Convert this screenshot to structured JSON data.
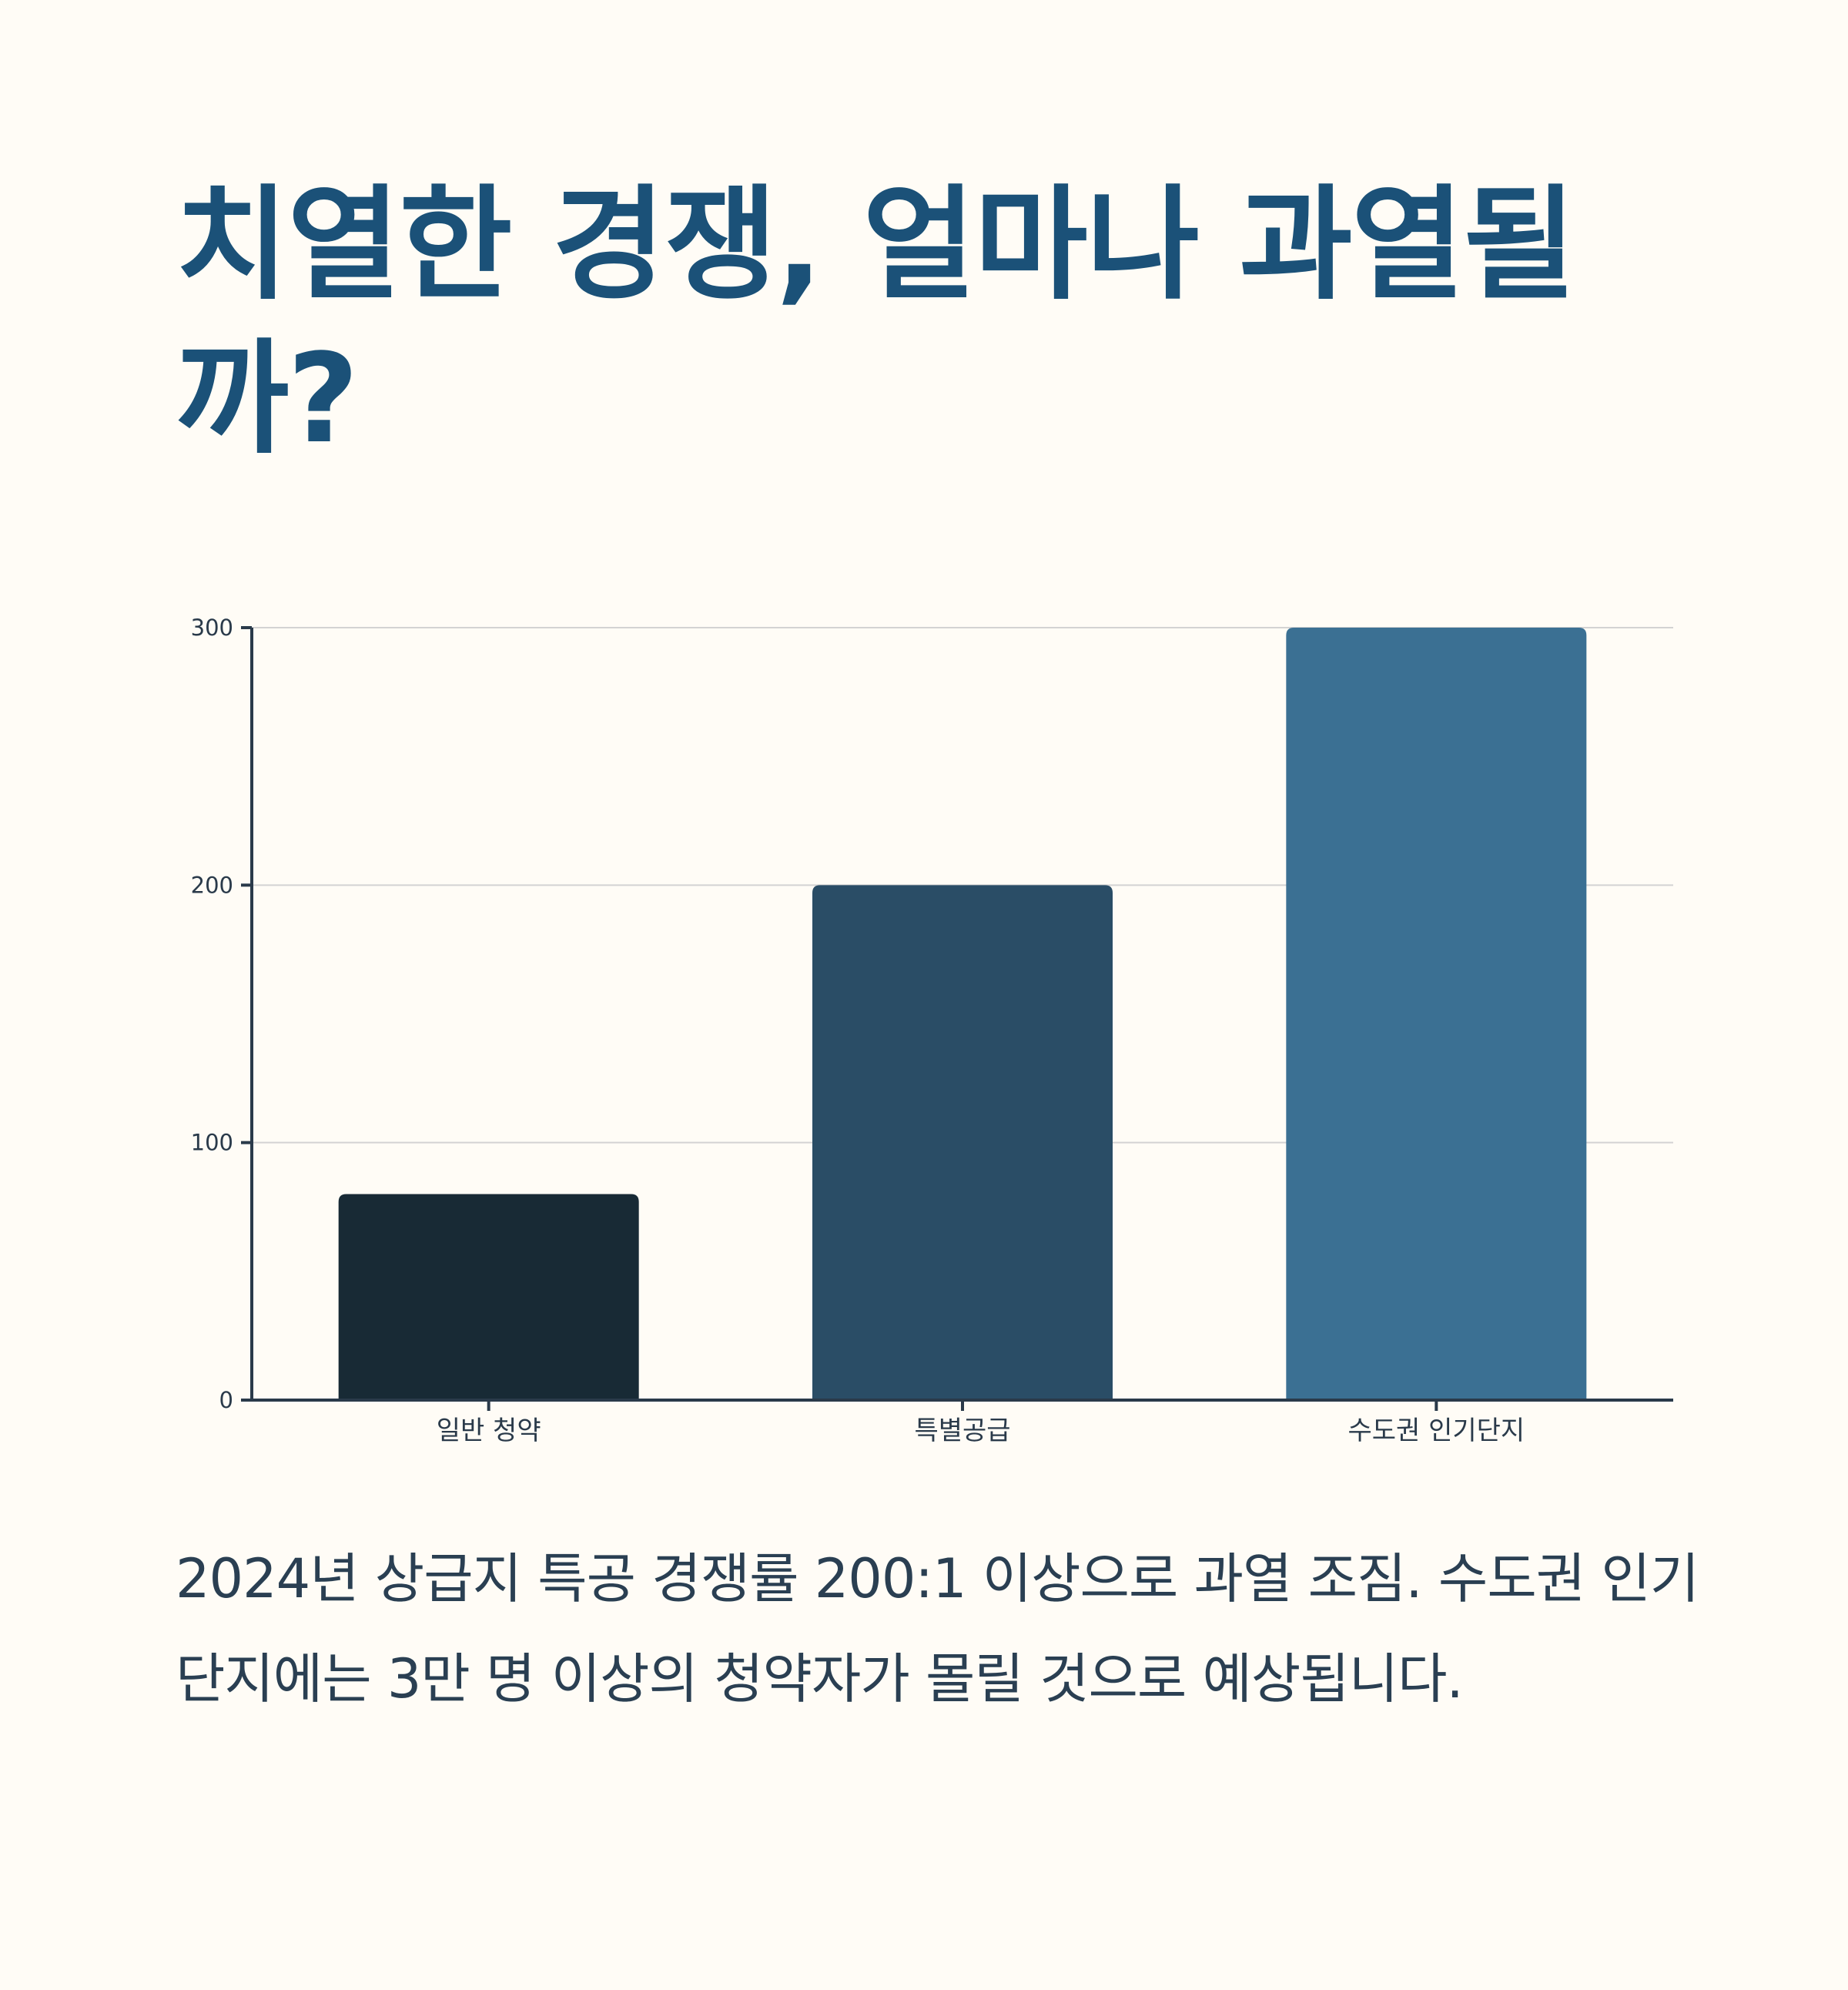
{
  "title": "치열한 경쟁, 얼마나 과열될까?",
  "description": "2024년 상급지 특공 경쟁률 200:1 이상으로 과열 조짐. 수도권 인기단지에는 3만 명 이상의 청약자가 몰릴 것으로 예상됩니다.",
  "chart_data": {
    "type": "bar",
    "title": "",
    "xlabel": "",
    "ylabel": "",
    "categories": [
      "일반 청약",
      "특별공급",
      "수도권 인기단지"
    ],
    "values": [
      80,
      200,
      300
    ],
    "ylim": [
      0,
      300
    ],
    "yticks": [
      "0",
      "100",
      "200",
      "300"
    ],
    "grid": true,
    "legend": "none",
    "colors": [
      "#182a35",
      "#2a4d66",
      "#3b7093"
    ],
    "axis_color": "#2a3a4a",
    "grid_color": "#d3d3d3"
  }
}
